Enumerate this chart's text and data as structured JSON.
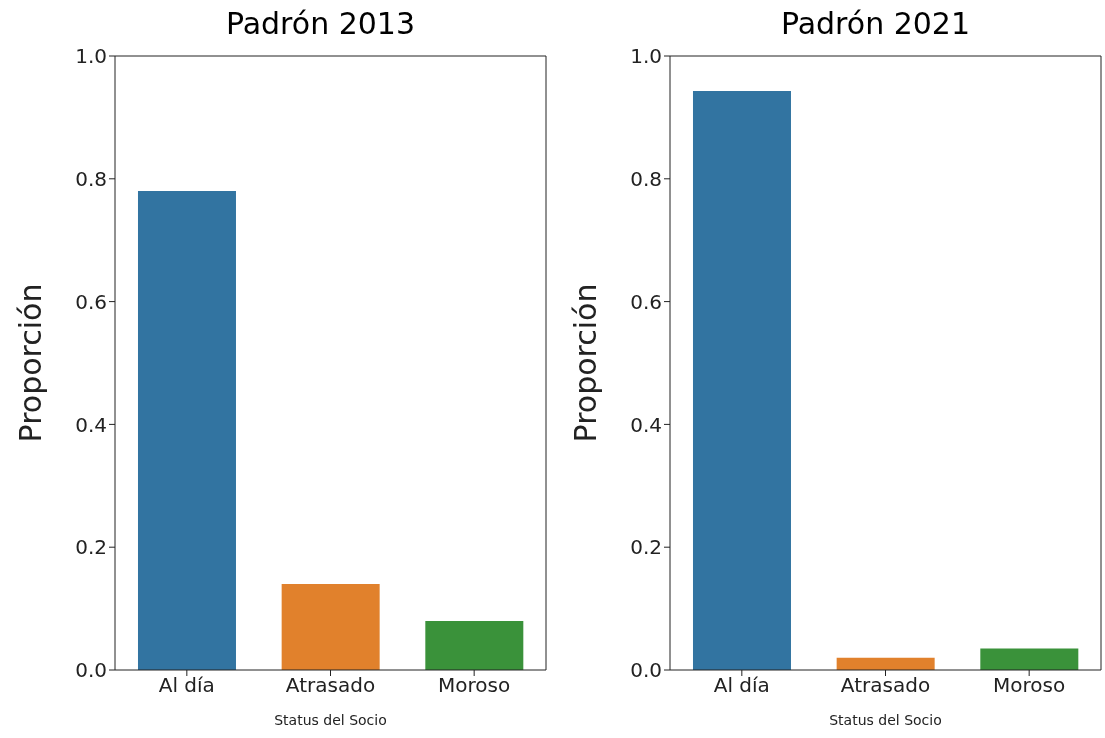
{
  "chart_data": [
    {
      "type": "bar",
      "title": "Padrón 2013",
      "xlabel": "Status del Socio",
      "ylabel": "Proporción",
      "categories": [
        "Al día",
        "Atrasado",
        "Moroso"
      ],
      "values": [
        0.78,
        0.14,
        0.08
      ],
      "colors": [
        "#3274a1",
        "#e1812c",
        "#3a923a"
      ],
      "ylim": [
        0,
        1
      ],
      "yticks": [
        {
          "value": 0,
          "label": "0.0"
        },
        {
          "value": 0.2,
          "label": "0.2"
        },
        {
          "value": 0.4,
          "label": "0.4"
        },
        {
          "value": 0.6,
          "label": "0.6"
        },
        {
          "value": 0.8,
          "label": "0.8"
        },
        {
          "value": 1,
          "label": "1.0"
        }
      ]
    },
    {
      "type": "bar",
      "title": "Padrón 2021",
      "xlabel": "Status del Socio",
      "ylabel": "Proporción",
      "categories": [
        "Al día",
        "Atrasado",
        "Moroso"
      ],
      "values": [
        0.943,
        0.02,
        0.035
      ],
      "colors": [
        "#3274a1",
        "#e1812c",
        "#3a923a"
      ],
      "ylim": [
        0,
        1
      ],
      "yticks": [
        {
          "value": 0,
          "label": "0.0"
        },
        {
          "value": 0.2,
          "label": "0.2"
        },
        {
          "value": 0.4,
          "label": "0.4"
        },
        {
          "value": 0.6,
          "label": "0.6"
        },
        {
          "value": 0.8,
          "label": "0.8"
        },
        {
          "value": 1,
          "label": "1.0"
        }
      ]
    }
  ]
}
